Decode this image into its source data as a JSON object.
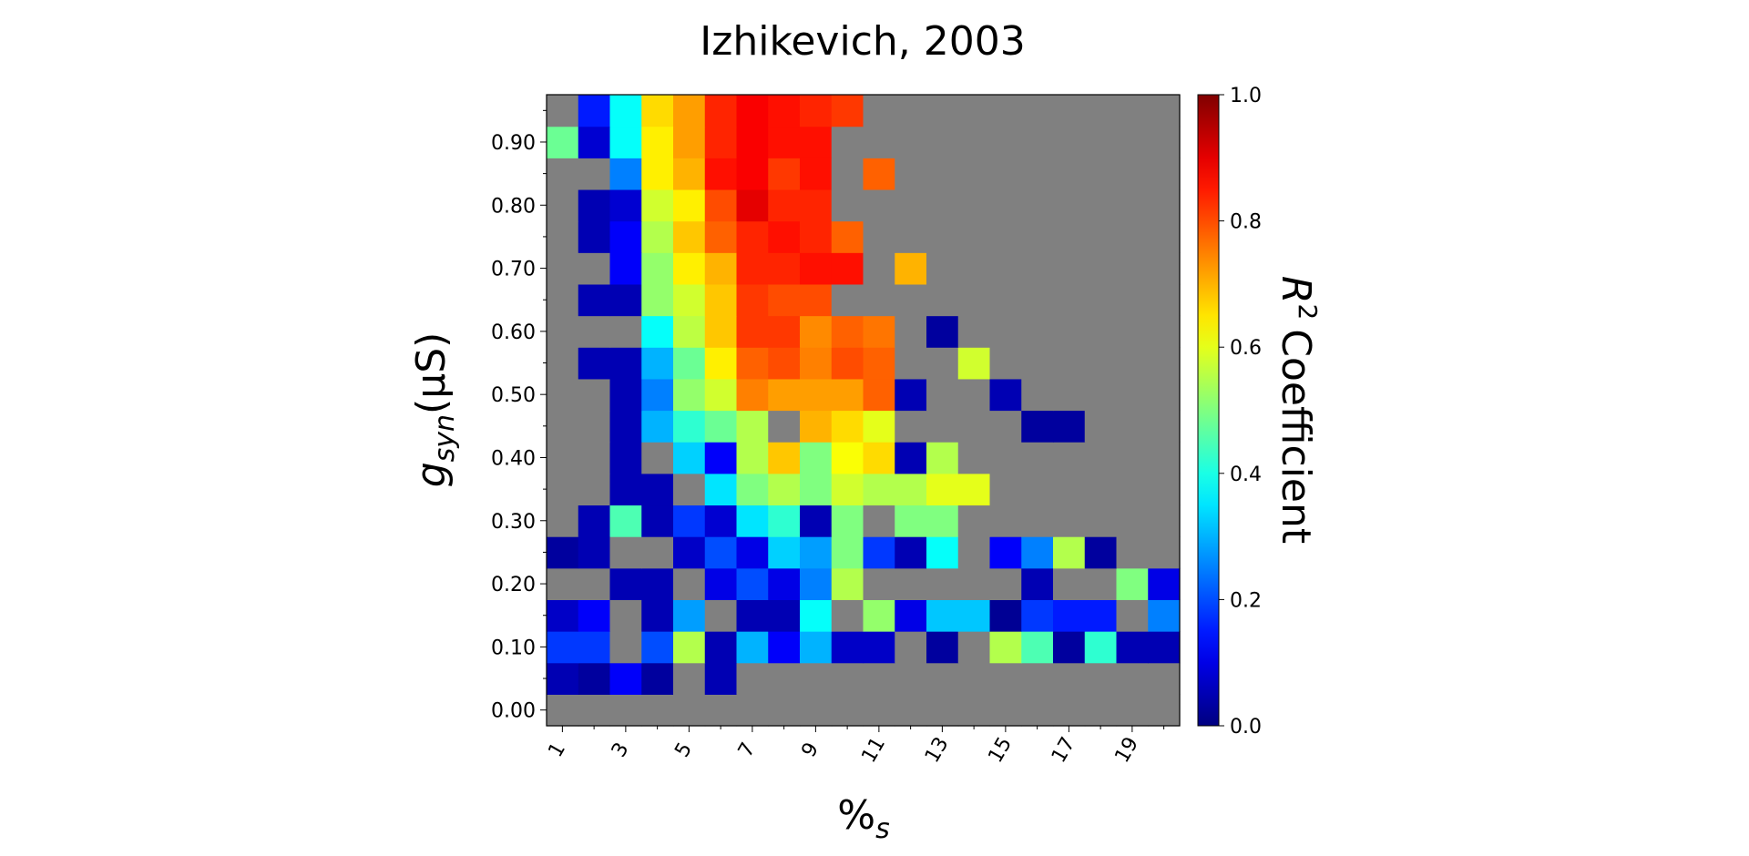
{
  "chart_data": {
    "type": "heatmap",
    "title": "Izhikevich, 2003",
    "xlabel": "%",
    "xlabel_sub": "s",
    "ylabel": "g",
    "ylabel_sub": "syn",
    "ylabel_unit": "(μS)",
    "colorbar_label": "Coefficient",
    "colorbar_label_math": "R",
    "colorbar_label_sup": "2",
    "colormap": "jet",
    "missing_color": "#808080",
    "vlim": [
      0.0,
      1.0
    ],
    "x_tick_labels": [
      "1",
      "3",
      "5",
      "7",
      "9",
      "11",
      "13",
      "15",
      "17",
      "19"
    ],
    "y_tick_labels": [
      "0.00",
      "0.10",
      "0.20",
      "0.30",
      "0.40",
      "0.50",
      "0.60",
      "0.70",
      "0.80",
      "0.90"
    ],
    "colorbar_tick_labels": [
      "0.0",
      "0.2",
      "0.4",
      "0.6",
      "0.8",
      "1.0"
    ],
    "x_values": [
      1,
      2,
      3,
      4,
      5,
      6,
      7,
      8,
      9,
      10,
      11,
      12,
      13,
      14,
      15,
      16,
      17,
      18,
      19,
      20
    ],
    "y_values": [
      0.0,
      0.05,
      0.1,
      0.15,
      0.2,
      0.25,
      0.3,
      0.35,
      0.4,
      0.45,
      0.5,
      0.55,
      0.6,
      0.65,
      0.7,
      0.75,
      0.8,
      0.85,
      0.9,
      0.95
    ],
    "values_comment_rows_bottom_to_top": "",
    "values": [
      [
        null,
        null,
        null,
        null,
        null,
        null,
        null,
        null,
        null,
        null,
        null,
        null,
        null,
        null,
        null,
        null,
        null,
        null,
        null,
        null
      ],
      [
        0.05,
        0.03,
        0.12,
        0.03,
        null,
        0.05,
        null,
        null,
        null,
        null,
        null,
        null,
        null,
        null,
        null,
        null,
        null,
        null,
        null,
        null
      ],
      [
        0.18,
        0.18,
        null,
        0.2,
        0.55,
        0.05,
        0.3,
        0.12,
        0.3,
        0.07,
        0.07,
        null,
        0.03,
        null,
        0.55,
        0.45,
        0.03,
        0.42,
        0.05,
        0.05
      ],
      [
        0.07,
        0.12,
        null,
        0.05,
        0.28,
        null,
        0.05,
        0.05,
        0.38,
        null,
        0.52,
        0.1,
        0.32,
        0.32,
        0.02,
        0.18,
        0.15,
        0.15,
        null,
        0.25
      ],
      [
        null,
        null,
        0.05,
        0.05,
        null,
        0.1,
        0.2,
        0.1,
        0.25,
        0.55,
        null,
        null,
        null,
        null,
        null,
        0.05,
        null,
        null,
        0.5,
        0.1
      ],
      [
        0.03,
        0.05,
        null,
        null,
        0.07,
        0.2,
        0.1,
        0.33,
        0.28,
        0.5,
        0.18,
        0.05,
        0.38,
        null,
        0.12,
        0.25,
        0.55,
        0.03,
        null,
        null
      ],
      [
        null,
        0.05,
        0.45,
        0.05,
        0.18,
        0.08,
        0.35,
        0.42,
        0.05,
        0.5,
        null,
        0.5,
        0.5,
        null,
        null,
        null,
        null,
        null,
        null,
        null
      ],
      [
        null,
        null,
        0.05,
        0.05,
        null,
        0.35,
        0.5,
        0.55,
        0.5,
        0.58,
        0.55,
        0.55,
        0.6,
        0.6,
        null,
        null,
        null,
        null,
        null,
        null
      ],
      [
        null,
        null,
        0.05,
        null,
        0.33,
        0.12,
        0.55,
        0.68,
        0.5,
        0.62,
        0.66,
        0.05,
        0.55,
        null,
        null,
        null,
        null,
        null,
        null,
        null
      ],
      [
        null,
        null,
        0.05,
        0.3,
        0.42,
        0.48,
        0.55,
        null,
        0.7,
        0.66,
        0.6,
        null,
        null,
        null,
        null,
        0.03,
        0.03,
        null,
        null,
        null
      ],
      [
        null,
        null,
        0.05,
        0.25,
        0.52,
        0.58,
        0.75,
        0.72,
        0.72,
        0.72,
        0.78,
        0.05,
        null,
        null,
        0.05,
        null,
        null,
        null,
        null,
        null
      ],
      [
        null,
        0.05,
        0.05,
        0.3,
        0.48,
        0.64,
        0.78,
        0.8,
        0.75,
        0.8,
        0.78,
        null,
        null,
        0.58,
        null,
        null,
        null,
        null,
        null,
        null
      ],
      [
        null,
        null,
        null,
        0.38,
        0.56,
        0.68,
        0.82,
        0.82,
        0.74,
        0.78,
        0.76,
        null,
        0.03,
        null,
        null,
        null,
        null,
        null,
        null,
        null
      ],
      [
        null,
        0.05,
        0.05,
        0.52,
        0.58,
        0.68,
        0.82,
        0.8,
        0.8,
        null,
        null,
        null,
        null,
        null,
        null,
        null,
        null,
        null,
        null,
        null
      ],
      [
        null,
        null,
        0.12,
        0.52,
        0.64,
        0.7,
        0.84,
        0.84,
        0.86,
        0.86,
        null,
        0.7,
        null,
        null,
        null,
        null,
        null,
        null,
        null,
        null
      ],
      [
        null,
        0.05,
        0.12,
        0.55,
        0.68,
        0.78,
        0.84,
        0.86,
        0.84,
        0.78,
        null,
        null,
        null,
        null,
        null,
        null,
        null,
        null,
        null,
        null
      ],
      [
        null,
        0.05,
        0.08,
        0.58,
        0.64,
        0.8,
        0.9,
        0.84,
        0.84,
        null,
        null,
        null,
        null,
        null,
        null,
        null,
        null,
        null,
        null,
        null
      ],
      [
        null,
        null,
        0.25,
        0.64,
        0.7,
        0.86,
        0.88,
        0.82,
        0.86,
        null,
        0.78,
        null,
        null,
        null,
        null,
        null,
        null,
        null,
        null,
        null
      ],
      [
        0.48,
        0.08,
        0.38,
        0.64,
        0.72,
        0.84,
        0.88,
        0.86,
        0.86,
        null,
        null,
        null,
        null,
        null,
        null,
        null,
        null,
        null,
        null,
        null
      ],
      [
        null,
        0.15,
        0.38,
        0.66,
        0.72,
        0.84,
        0.88,
        0.86,
        0.84,
        0.82,
        null,
        null,
        null,
        null,
        null,
        null,
        null,
        null,
        null,
        null
      ]
    ]
  }
}
